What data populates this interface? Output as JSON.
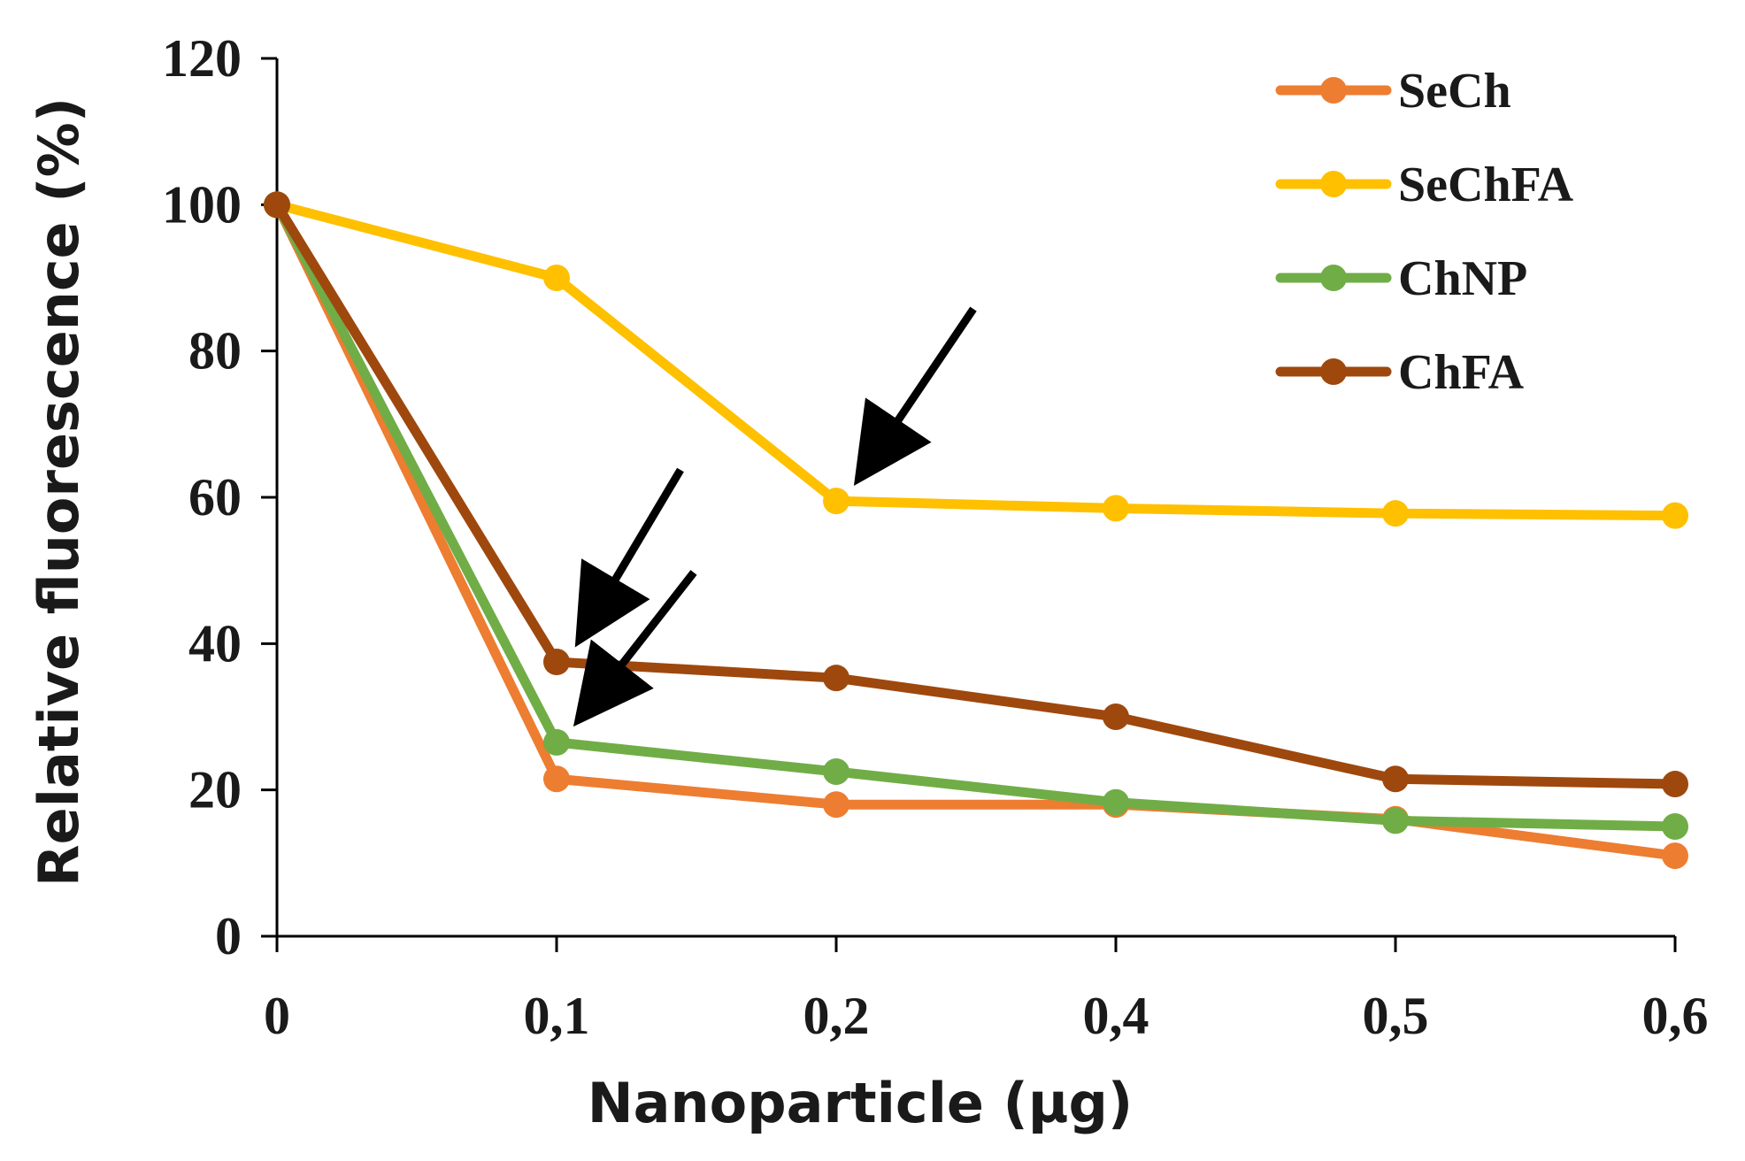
{
  "chart_data": {
    "type": "line",
    "title": "",
    "xlabel": "Nanoparticle (µg)",
    "ylabel": "Relative fluorescence (%)",
    "categories": [
      "0",
      "0,1",
      "0,2",
      "0,4",
      "0,5",
      "0,6"
    ],
    "ylim": [
      0,
      120
    ],
    "yticks": [
      "0",
      "20",
      "40",
      "60",
      "80",
      "100",
      "120"
    ],
    "grid": false,
    "legend": "top-right",
    "series": [
      {
        "name": "SeCh",
        "color": "#ED7D31",
        "values": [
          100,
          21.5,
          18,
          18,
          16,
          11
        ]
      },
      {
        "name": "SeChFA",
        "color": "#FFC000",
        "values": [
          100,
          90,
          59.5,
          58.5,
          57.8,
          57.5
        ]
      },
      {
        "name": "ChNP",
        "color": "#70AD47",
        "values": [
          100,
          26.5,
          22.5,
          18.3,
          15.8,
          15
        ]
      },
      {
        "name": "ChFA",
        "color": "#9E480E",
        "values": [
          100,
          37.5,
          35.3,
          30,
          21.5,
          20.8
        ]
      }
    ],
    "annotations": [
      {
        "type": "arrow",
        "points_to": {
          "series": "SeChFA",
          "category": "0,2"
        }
      },
      {
        "type": "arrow",
        "points_to": {
          "series": "ChFA",
          "category": "0,1"
        }
      },
      {
        "type": "arrow",
        "points_to": {
          "series": "ChNP",
          "category": "0,1"
        }
      }
    ]
  }
}
